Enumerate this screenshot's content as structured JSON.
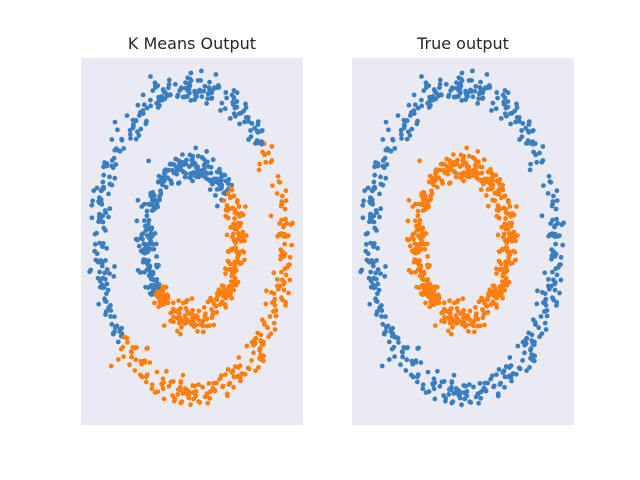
{
  "colors": {
    "background": "#ffffff",
    "axes_face": "#eaeaf2",
    "cluster_a": "#3a7ebf",
    "cluster_b": "#ff7f0e"
  },
  "chart_data": [
    {
      "type": "scatter",
      "title": "K Means Output",
      "xlabel": "",
      "ylabel": "",
      "xlim": [
        -1.2,
        1.2
      ],
      "ylim": [
        -1.2,
        1.2
      ],
      "grid": false,
      "legend": "none",
      "rings": {
        "outer_radius": 1.0,
        "inner_radius": 0.5,
        "points_per_ring": 500,
        "noise": 0.05
      },
      "series": [
        {
          "color": "#3a7ebf",
          "rule": "points left of the line through the ring centre at about 40 degrees"
        },
        {
          "color": "#ff7f0e",
          "rule": "points right of that line"
        }
      ]
    },
    {
      "type": "scatter",
      "title": "True output",
      "xlabel": "",
      "ylabel": "",
      "xlim": [
        -1.2,
        1.2
      ],
      "ylim": [
        -1.2,
        1.2
      ],
      "grid": false,
      "legend": "none",
      "rings": {
        "outer_radius": 1.0,
        "inner_radius": 0.5,
        "points_per_ring": 500,
        "noise": 0.05
      },
      "series": [
        {
          "color": "#3a7ebf",
          "rule": "outer ring"
        },
        {
          "color": "#ff7f0e",
          "rule": "inner ring"
        }
      ]
    }
  ]
}
